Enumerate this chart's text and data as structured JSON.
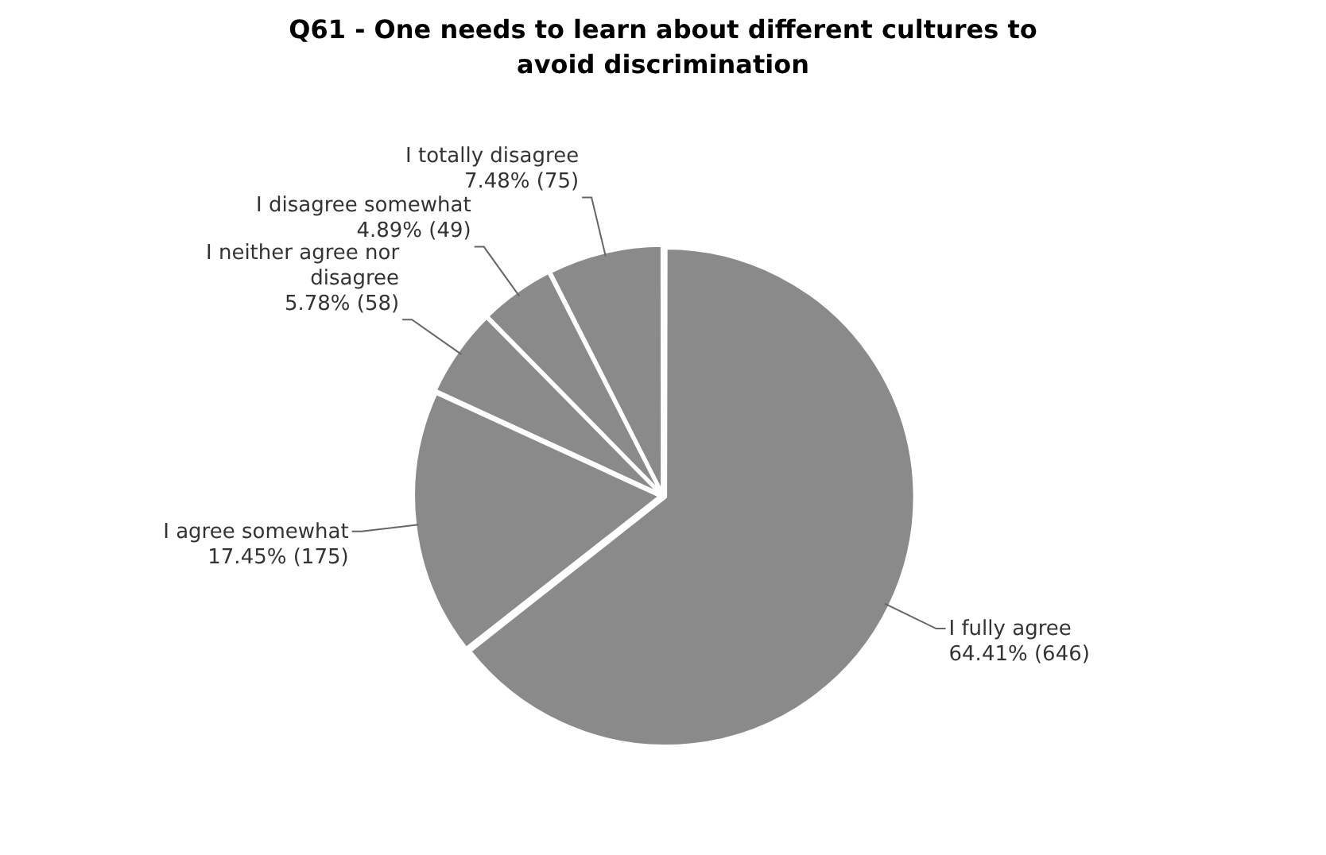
{
  "chart_data": {
    "type": "pie",
    "title": "Q61 - One needs to learn about different cultures to avoid discrimination",
    "categories": [
      "I fully agree",
      "I agree somewhat",
      "I neither agree nor disagree",
      "I disagree somewhat",
      "I totally disagree"
    ],
    "values": [
      646,
      175,
      58,
      49,
      75
    ],
    "value_labels": [
      "64.41% (646)",
      "17.45% (175)",
      "5.78% (58)",
      "4.89% (49)",
      "7.48% (75)"
    ],
    "colors": [
      "#8a8a8a",
      "#8a8a8a",
      "#8a8a8a",
      "#8a8a8a",
      "#8a8a8a"
    ],
    "legend": false
  }
}
